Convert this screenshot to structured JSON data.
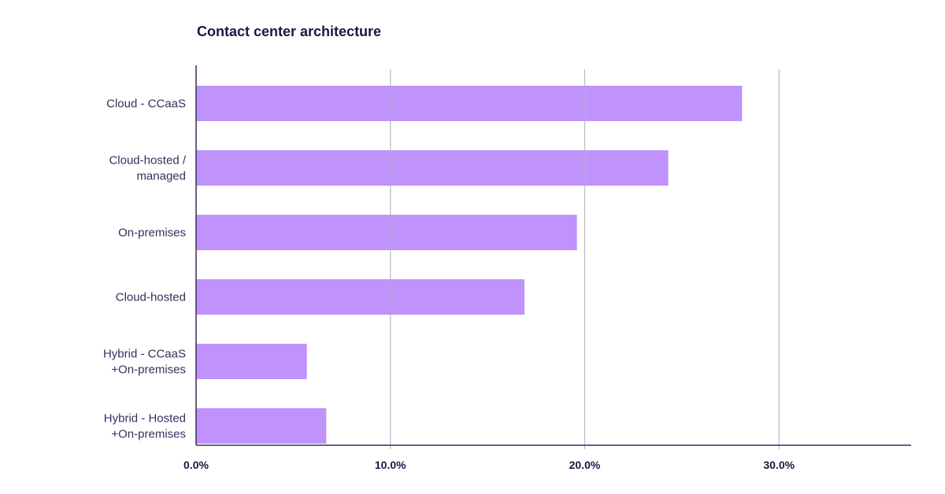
{
  "chart_data": {
    "type": "bar",
    "orientation": "horizontal",
    "title": "Contact center architecture",
    "categories": [
      [
        "Cloud - CCaaS"
      ],
      [
        "Cloud-hosted /",
        "managed"
      ],
      [
        "On-premises"
      ],
      [
        "Cloud-hosted"
      ],
      [
        "Hybrid - CCaaS",
        "+On-premises"
      ],
      [
        "Hybrid - Hosted",
        "+On-premises"
      ]
    ],
    "values": [
      28.1,
      24.3,
      19.6,
      16.9,
      5.7,
      6.7
    ],
    "xlim": [
      0,
      36.8
    ],
    "xticks": [
      0,
      10,
      20,
      30
    ],
    "xtick_labels": [
      "0.0%",
      "10.0%",
      "20.0%",
      "30.0%"
    ],
    "grid": "vertical",
    "colors": {
      "bar": "#C092FC",
      "axis": "#3a2d5c",
      "grid": "#b8b4c0",
      "text": "#231342"
    }
  }
}
